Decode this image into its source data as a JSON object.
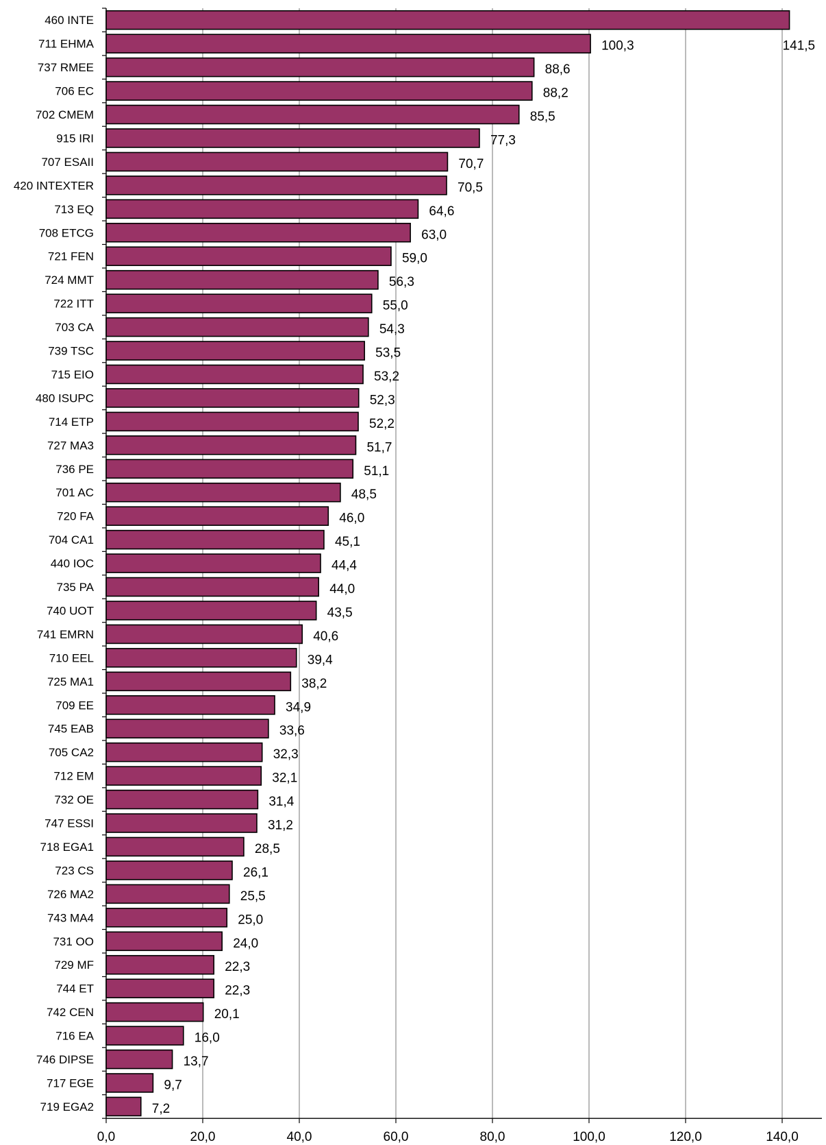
{
  "chart_data": {
    "type": "bar",
    "orientation": "horizontal",
    "title": "",
    "xlabel": "",
    "ylabel": "",
    "xlim": [
      0,
      140
    ],
    "x_ticks": [
      "0,0",
      "20,0",
      "40,0",
      "60,0",
      "80,0",
      "100,0",
      "120,0",
      "140,0"
    ],
    "grid": "vertical",
    "bar_color": "#993366",
    "categories": [
      "460 INTE",
      "711 EHMA",
      "737 RMEE",
      "706 EC",
      "702 CMEM",
      "915 IRI",
      "707 ESAII",
      "420 INTEXTER",
      "713 EQ",
      "708 ETCG",
      "721 FEN",
      "724 MMT",
      "722 ITT",
      "703 CA",
      "739 TSC",
      "715 EIO",
      "480 ISUPC",
      "714 ETP",
      "727 MA3",
      "736 PE",
      "701 AC",
      "720 FA",
      "704 CA1",
      "440 IOC",
      "735 PA",
      "740 UOT",
      "741 EMRN",
      "710 EEL",
      "725 MA1",
      "709 EE",
      "745 EAB",
      "705 CA2",
      "712 EM",
      "732 OE",
      "747 ESSI",
      "718 EGA1",
      "723 CS",
      "726 MA2",
      "743 MA4",
      "731 OO",
      "729 MF",
      "744 ET",
      "742 CEN",
      "716 EA",
      "746 DIPSE",
      "717 EGE",
      "719 EGA2"
    ],
    "values": [
      141.5,
      100.3,
      88.6,
      88.2,
      85.5,
      77.3,
      70.7,
      70.5,
      64.6,
      63.0,
      59.0,
      56.3,
      55.0,
      54.3,
      53.5,
      53.2,
      52.3,
      52.2,
      51.7,
      51.1,
      48.5,
      46.0,
      45.1,
      44.4,
      44.0,
      43.5,
      40.6,
      39.4,
      38.2,
      34.9,
      33.6,
      32.3,
      32.1,
      31.4,
      31.2,
      28.5,
      26.1,
      25.5,
      25.0,
      24.0,
      22.3,
      22.3,
      20.1,
      16.0,
      13.7,
      9.7,
      7.2
    ],
    "value_labels": [
      "141,5",
      "100,3",
      "88,6",
      "88,2",
      "85,5",
      "77,3",
      "70,7",
      "70,5",
      "64,6",
      "63,0",
      "59,0",
      "56,3",
      "55,0",
      "54,3",
      "53,5",
      "53,2",
      "52,3",
      "52,2",
      "51,7",
      "51,1",
      "48,5",
      "46,0",
      "45,1",
      "44,4",
      "44,0",
      "43,5",
      "40,6",
      "39,4",
      "38,2",
      "34,9",
      "33,6",
      "32,3",
      "32,1",
      "31,4",
      "31,2",
      "28,5",
      "26,1",
      "25,5",
      "25,0",
      "24,0",
      "22,3",
      "22,3",
      "20,1",
      "16,0",
      "13,7",
      "9,7",
      "7,2"
    ]
  }
}
